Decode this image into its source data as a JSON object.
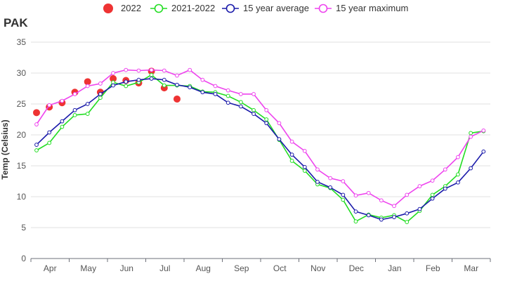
{
  "chart_data": {
    "type": "line",
    "title": "PAK",
    "ylabel": "Temp (Celsius)",
    "xlabel": "",
    "ylim": [
      0,
      35
    ],
    "yticks": [
      0,
      5,
      10,
      15,
      20,
      25,
      30,
      35
    ],
    "xlim": [
      0,
      36
    ],
    "month_labels": [
      "Apr",
      "May",
      "Jun",
      "Jul",
      "Aug",
      "Sep",
      "Oct",
      "Nov",
      "Dec",
      "Jan",
      "Feb",
      "Mar"
    ],
    "grid": true,
    "legend_position": "top",
    "series": [
      {
        "name": "2022",
        "style": "dots",
        "color": "#ee3333",
        "values": [
          23.6,
          24.5,
          25.2,
          26.9,
          28.6,
          26.9,
          29.1,
          28.8,
          28.4,
          30.3,
          27.6,
          25.8
        ]
      },
      {
        "name": "2021-2022",
        "style": "line",
        "color": "#22dd22",
        "values": [
          17.5,
          18.7,
          21.3,
          23.2,
          23.4,
          26.0,
          28.5,
          27.9,
          28.5,
          29.7,
          28.0,
          28.0,
          27.9,
          27.0,
          26.9,
          26.3,
          25.3,
          24.0,
          22.5,
          19.2,
          15.8,
          14.2,
          12.0,
          11.4,
          9.5,
          6.0,
          7.1,
          6.6,
          7.0,
          5.9,
          7.7,
          10.3,
          11.7,
          13.6,
          20.3,
          20.6
        ]
      },
      {
        "name": "15 year average",
        "style": "line",
        "color": "#1a1aaa",
        "values": [
          18.4,
          20.4,
          22.2,
          24.0,
          25.0,
          26.6,
          28.0,
          28.6,
          28.9,
          29.1,
          28.9,
          28.1,
          27.7,
          26.9,
          26.6,
          25.2,
          24.6,
          23.4,
          21.9,
          19.3,
          16.8,
          14.8,
          12.4,
          11.5,
          10.3,
          7.6,
          7.0,
          6.3,
          6.7,
          7.3,
          8.0,
          9.7,
          11.3,
          12.3,
          14.6,
          17.3
        ]
      },
      {
        "name": "15 year maximum",
        "style": "line",
        "color": "#ee44ee",
        "values": [
          21.7,
          24.8,
          25.5,
          26.6,
          27.9,
          28.3,
          30.0,
          30.5,
          30.4,
          30.5,
          30.4,
          29.6,
          30.5,
          28.9,
          27.9,
          27.2,
          26.6,
          26.6,
          24.0,
          21.9,
          18.9,
          17.4,
          14.4,
          13.0,
          12.5,
          10.2,
          10.6,
          9.4,
          8.5,
          10.3,
          11.7,
          12.6,
          14.4,
          16.4,
          19.7,
          20.7
        ]
      }
    ]
  }
}
